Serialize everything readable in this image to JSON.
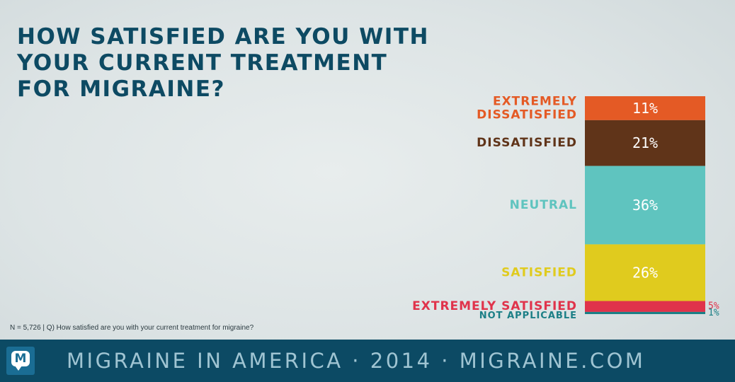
{
  "title_lines": [
    "HOW SATISFIED ARE YOU WITH",
    "YOUR CURRENT TREATMENT",
    "FOR MIGRAINE?"
  ],
  "chart_data": {
    "type": "bar",
    "stacked": true,
    "categories": [
      "EXTREMELY DISSATISFIED",
      "DISSATISFIED",
      "NEUTRAL",
      "SATISFIED",
      "EXTREMELY SATISFIED",
      "NOT APPLICABLE"
    ],
    "values": [
      11,
      21,
      36,
      26,
      5,
      1
    ],
    "labels": [
      "11%",
      "21%",
      "36%",
      "26%",
      "5%",
      "1%"
    ],
    "colors": [
      "#e45a25",
      "#603419",
      "#5fc4bf",
      "#e0cb1e",
      "#e0334b",
      "#1b7f86"
    ],
    "category_label_colors": [
      "#e45a25",
      "#603419",
      "#5fc4bf",
      "#e0cb1e",
      "#e0334b",
      "#1b7f86"
    ]
  },
  "footnote": "N = 5,726  |  Q) How satisfied are you with your current treatment for migraine?",
  "footer": {
    "logo_letter": "M",
    "text": "MIGRAINE IN AMERICA  ·  2014  ·  MIGRAINE.COM"
  }
}
